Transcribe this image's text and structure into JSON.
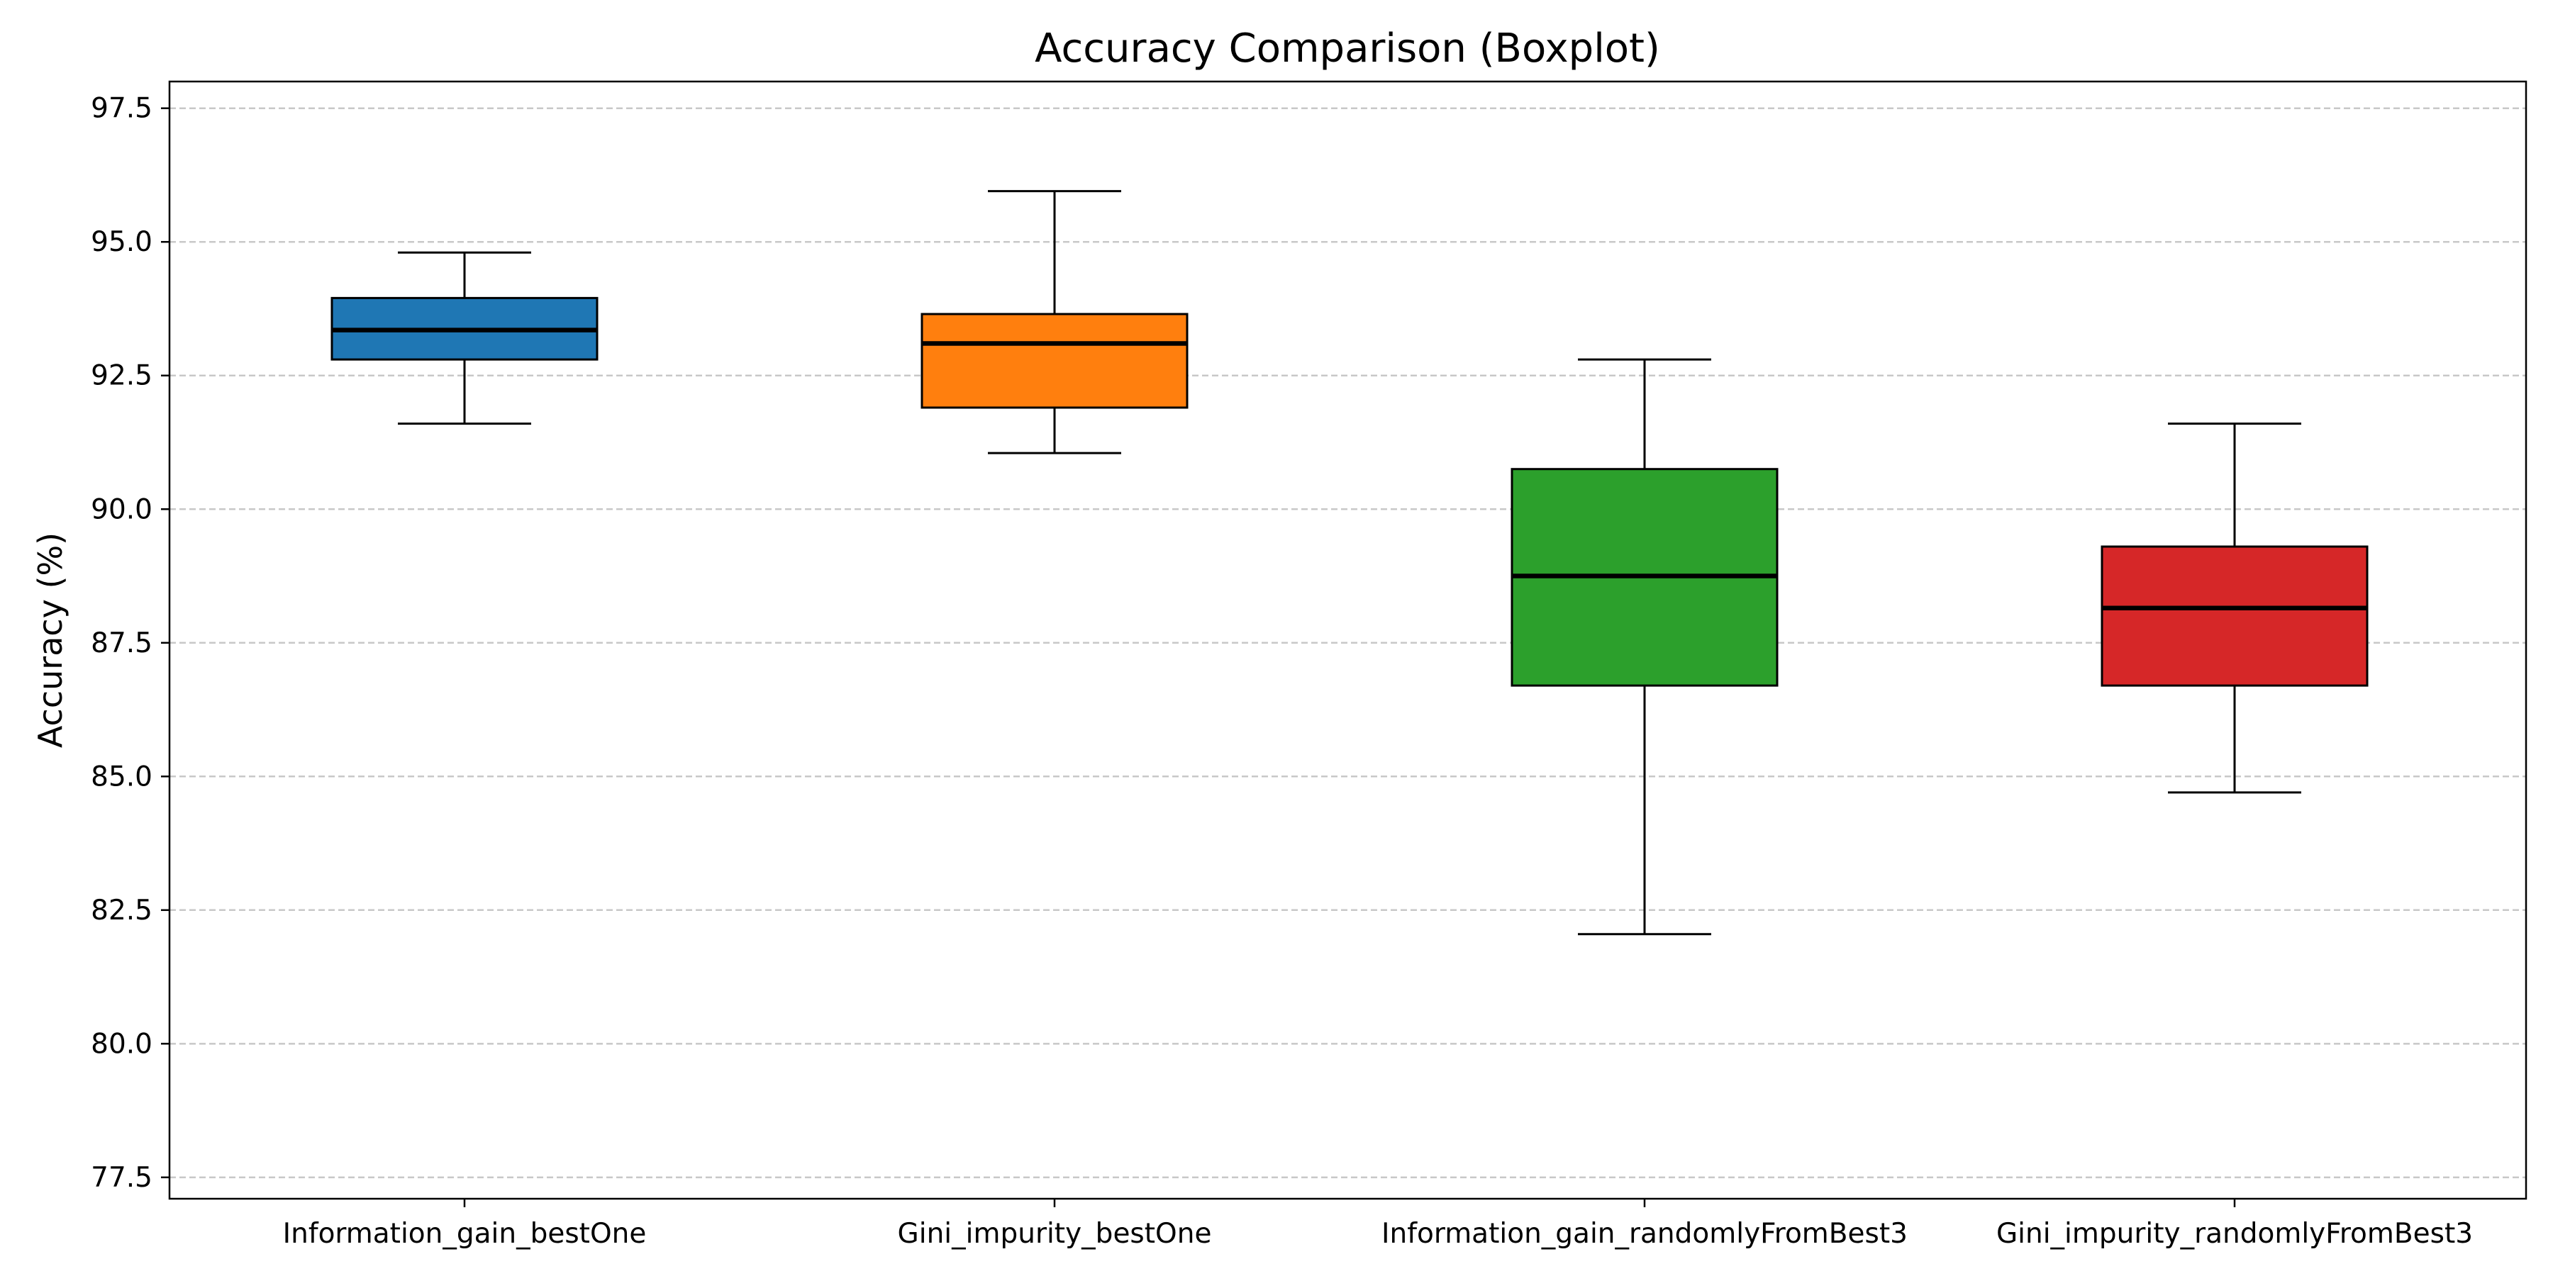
{
  "chart_data": {
    "type": "box",
    "title": "Accuracy Comparison (Boxplot)",
    "xlabel": "",
    "ylabel": "Accuracy (%)",
    "ylim": [
      77.1,
      98.0
    ],
    "yticks": [
      "77.5",
      "80.0",
      "82.5",
      "85.0",
      "87.5",
      "90.0",
      "92.5",
      "95.0",
      "97.5"
    ],
    "grid": "horizontal dashed",
    "categories": [
      "Information_gain_bestOne",
      "Gini_impurity_bestOne",
      "Information_gain_randomlyFromBest3",
      "Gini_impurity_randomlyFromBest3"
    ],
    "boxes": [
      {
        "category": "Information_gain_bestOne",
        "whisker_low": 91.6,
        "q1": 92.8,
        "median": 93.35,
        "q3": 93.95,
        "whisker_high": 94.8,
        "color": "#1f77b4"
      },
      {
        "category": "Gini_impurity_bestOne",
        "whisker_low": 91.05,
        "q1": 91.9,
        "median": 93.1,
        "q3": 93.65,
        "whisker_high": 95.95,
        "color": "#ff7f0e"
      },
      {
        "category": "Information_gain_randomlyFromBest3",
        "whisker_low": 82.05,
        "q1": 86.7,
        "median": 88.75,
        "q3": 90.75,
        "whisker_high": 92.8,
        "color": "#2ca02c"
      },
      {
        "category": "Gini_impurity_randomlyFromBest3",
        "whisker_low": 84.7,
        "q1": 86.7,
        "median": 88.15,
        "q3": 89.3,
        "whisker_high": 91.6,
        "color": "#d62728"
      }
    ]
  }
}
